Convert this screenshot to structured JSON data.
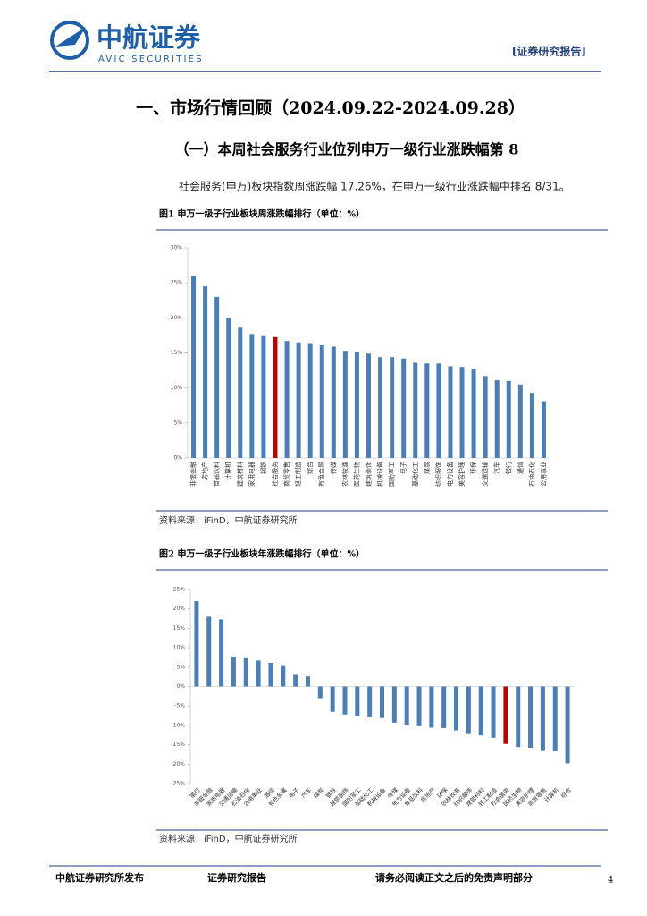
{
  "header": {
    "logo": "中航证券",
    "logo_en": "AVIC SECURITIES",
    "tag": "[证券研究报告]"
  },
  "heading": "一、市场行情回顾（2024.09.22-2024.09.28）",
  "subheading": "（一）本周社会服务行业位列申万一级行业涨跌幅第 8",
  "paragraph": "社会服务(申万)板块指数周涨跌幅 17.26%，在申万一级行业涨跌幅中排名 8/31。",
  "chart_data": [
    {
      "type": "bar",
      "title": "图1  申万一级子行业板块周涨跌幅排行（单位：%）",
      "source": "资料来源：iFinD，中航证券研究所",
      "categories": [
        "非银金融",
        "房地产",
        "食品饮料",
        "计算机",
        "建筑材料",
        "家用电器",
        "钢铁",
        "社会服务",
        "商贸零售",
        "轻工制造",
        "综合",
        "有色金属",
        "传媒",
        "农林牧渔",
        "医药生物",
        "建筑装饰",
        "机械设备",
        "国防军工",
        "电子",
        "基础化工",
        "煤炭",
        "纺织服饰",
        "电力设备",
        "美容护理",
        "环保",
        "交通运输",
        "汽车",
        "银行",
        "通信",
        "石油石化",
        "公用事业"
      ],
      "values": [
        26.0,
        24.5,
        23.0,
        20.0,
        18.6,
        17.7,
        17.4,
        17.26,
        16.7,
        16.5,
        16.4,
        16.1,
        15.9,
        15.3,
        15.2,
        14.9,
        14.4,
        14.4,
        14.2,
        13.6,
        13.5,
        13.5,
        13.1,
        13.0,
        12.7,
        11.7,
        11.1,
        11.0,
        10.5,
        9.3,
        8.1
      ],
      "colors": [
        "#4a7ebb",
        "#4a7ebb",
        "#4a7ebb",
        "#4a7ebb",
        "#4a7ebb",
        "#4a7ebb",
        "#4a7ebb",
        "#c00000",
        "#4a7ebb",
        "#4a7ebb",
        "#4a7ebb",
        "#4a7ebb",
        "#4a7ebb",
        "#4a7ebb",
        "#4a7ebb",
        "#4a7ebb",
        "#4a7ebb",
        "#4a7ebb",
        "#4a7ebb",
        "#4a7ebb",
        "#4a7ebb",
        "#4a7ebb",
        "#4a7ebb",
        "#4a7ebb",
        "#4a7ebb",
        "#4a7ebb",
        "#4a7ebb",
        "#4a7ebb",
        "#4a7ebb",
        "#4a7ebb",
        "#4a7ebb"
      ],
      "ylim": [
        0,
        30
      ],
      "yticks": [
        {
          "value": 0,
          "label": "0%"
        },
        {
          "value": 5,
          "label": "5%"
        },
        {
          "value": 10,
          "label": "10%"
        },
        {
          "value": 15,
          "label": "15%"
        },
        {
          "value": 20,
          "label": "20%"
        },
        {
          "value": 25,
          "label": "25%"
        },
        {
          "value": 30,
          "label": "30%"
        }
      ]
    },
    {
      "type": "bar",
      "title": "图2  申万一级子行业板块年涨跌幅排行（单位：%）",
      "source": "资料来源：iFinD，中航证券研究所",
      "categories": [
        "银行",
        "非银金融",
        "家用电器",
        "交通运输",
        "石油石化",
        "公用事业",
        "通信",
        "有色金属",
        "电子",
        "汽车",
        "煤炭",
        "钢铁",
        "建筑装饰",
        "国防军工",
        "基础化工",
        "机械设备",
        "传媒",
        "电力设备",
        "食品饮料",
        "房地产",
        "环保",
        "农林牧渔",
        "纺织服饰",
        "建筑材料",
        "轻工制造",
        "社会服务",
        "医药生物",
        "美容护理",
        "商贸零售",
        "计算机",
        "综合"
      ],
      "values": [
        22.0,
        18.0,
        17.3,
        7.7,
        7.3,
        6.7,
        6.1,
        5.5,
        3.0,
        2.6,
        -3.0,
        -6.5,
        -7.2,
        -7.5,
        -7.7,
        -8.1,
        -9.3,
        -9.8,
        -10.2,
        -10.6,
        -10.7,
        -11.3,
        -12.0,
        -12.6,
        -13.2,
        -14.8,
        -15.6,
        -15.8,
        -16.4,
        -16.7,
        -19.8
      ],
      "colors": [
        "#4a7ebb",
        "#4a7ebb",
        "#4a7ebb",
        "#4a7ebb",
        "#4a7ebb",
        "#4a7ebb",
        "#4a7ebb",
        "#4a7ebb",
        "#4a7ebb",
        "#4a7ebb",
        "#4a7ebb",
        "#4a7ebb",
        "#4a7ebb",
        "#4a7ebb",
        "#4a7ebb",
        "#4a7ebb",
        "#4a7ebb",
        "#4a7ebb",
        "#4a7ebb",
        "#4a7ebb",
        "#4a7ebb",
        "#4a7ebb",
        "#4a7ebb",
        "#4a7ebb",
        "#4a7ebb",
        "#c00000",
        "#4a7ebb",
        "#4a7ebb",
        "#4a7ebb",
        "#4a7ebb",
        "#4a7ebb"
      ],
      "ylim": [
        -25,
        25
      ],
      "yticks": [
        {
          "value": -25,
          "label": "-25%"
        },
        {
          "value": -20,
          "label": "-20%"
        },
        {
          "value": -15,
          "label": "-15%"
        },
        {
          "value": -10,
          "label": "-10%"
        },
        {
          "value": -5,
          "label": "-5%"
        },
        {
          "value": 0,
          "label": "0%"
        },
        {
          "value": 5,
          "label": "5%"
        },
        {
          "value": 10,
          "label": "10%"
        },
        {
          "value": 15,
          "label": "15%"
        },
        {
          "value": 20,
          "label": "20%"
        },
        {
          "value": 25,
          "label": "25%"
        }
      ]
    }
  ],
  "footer": {
    "left": "中航证券研究所发布",
    "middle": "证券研究报告",
    "right": "请务必阅读正文之后的免责声明部分",
    "page": "4"
  }
}
